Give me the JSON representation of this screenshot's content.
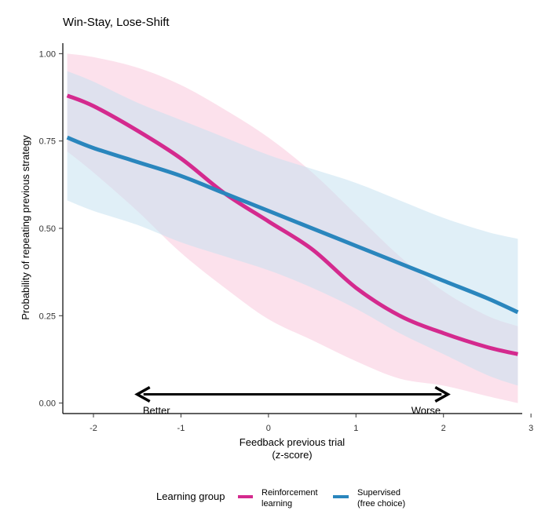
{
  "chart_data": {
    "type": "line",
    "title": "Win-Stay, Lose-Shift",
    "xlabel_line1": "Feedback previous trial",
    "xlabel_line2": "(z-score)",
    "ylabel": "Probability of repeating previous strategy",
    "xlim": [
      -2.35,
      2.9
    ],
    "ylim": [
      -0.03,
      1.03
    ],
    "x_ticks": [
      -2,
      -1,
      0,
      1,
      2,
      3
    ],
    "x_tick_labels": [
      "-2",
      "-1",
      "0",
      "1",
      "2",
      "3"
    ],
    "y_ticks": [
      0.0,
      0.25,
      0.5,
      0.75,
      1.0
    ],
    "y_tick_labels": [
      "0.00",
      "0.25",
      "0.50",
      "0.75",
      "1.00"
    ],
    "grid": false,
    "legend": {
      "title": "Learning group",
      "position": "bottom"
    },
    "annotations": {
      "arrow_x": [
        -1.5,
        2.05
      ],
      "arrow_y": 0.025,
      "left_label": "Better",
      "right_label": "Worse",
      "left_label_x": -1.28,
      "right_label_x": 1.8
    },
    "series": [
      {
        "name_line1": "Reinforcement",
        "name_line2": "learning",
        "color": "#d42a8e",
        "band_color": "#f9c8dd",
        "x": [
          -2.3,
          -2.0,
          -1.5,
          -1.0,
          -0.5,
          0.0,
          0.5,
          1.0,
          1.5,
          2.0,
          2.5,
          2.85
        ],
        "y": [
          0.88,
          0.85,
          0.78,
          0.7,
          0.6,
          0.52,
          0.44,
          0.33,
          0.25,
          0.2,
          0.16,
          0.14
        ],
        "lower": [
          0.72,
          0.66,
          0.55,
          0.43,
          0.33,
          0.24,
          0.18,
          0.12,
          0.07,
          0.05,
          0.02,
          0.0
        ],
        "upper": [
          1.0,
          0.99,
          0.96,
          0.91,
          0.84,
          0.76,
          0.66,
          0.54,
          0.42,
          0.32,
          0.25,
          0.22
        ]
      },
      {
        "name_line1": "Supervised",
        "name_line2": "(free choice)",
        "color": "#2a86bd",
        "band_color": "#c7e1f1",
        "x": [
          -2.3,
          -2.0,
          -1.5,
          -1.0,
          -0.5,
          0.0,
          0.5,
          1.0,
          1.5,
          2.0,
          2.5,
          2.85
        ],
        "y": [
          0.76,
          0.73,
          0.69,
          0.65,
          0.6,
          0.55,
          0.5,
          0.45,
          0.4,
          0.35,
          0.3,
          0.26
        ],
        "lower": [
          0.58,
          0.55,
          0.51,
          0.46,
          0.42,
          0.38,
          0.33,
          0.27,
          0.2,
          0.14,
          0.08,
          0.05
        ],
        "upper": [
          0.95,
          0.92,
          0.86,
          0.81,
          0.76,
          0.71,
          0.67,
          0.63,
          0.58,
          0.53,
          0.49,
          0.47
        ]
      }
    ]
  }
}
